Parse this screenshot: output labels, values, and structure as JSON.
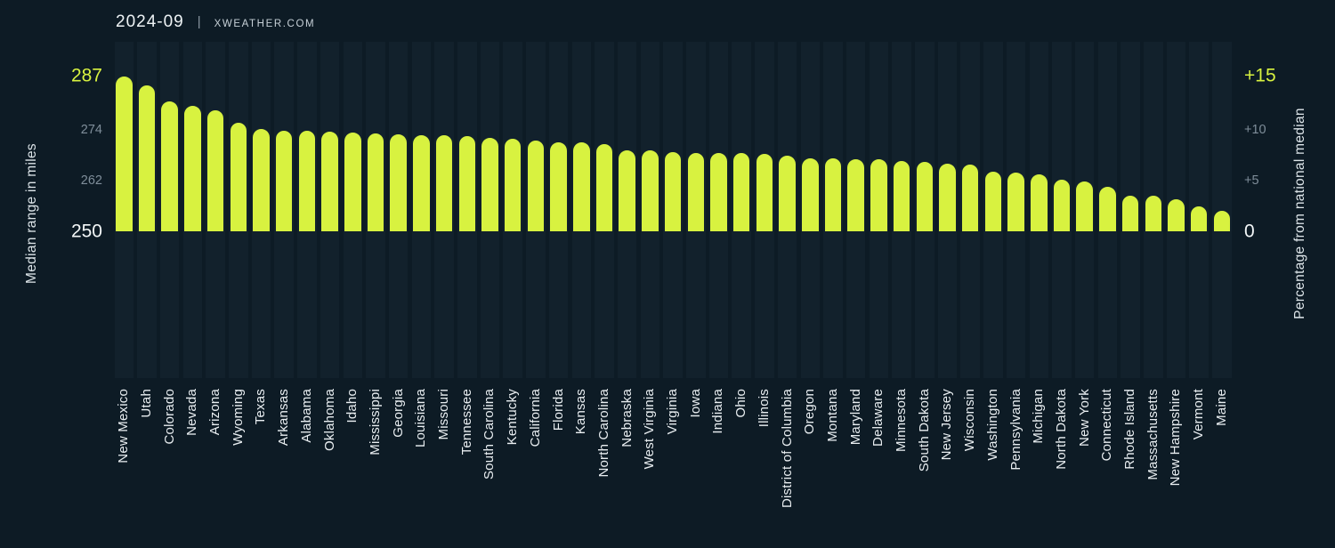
{
  "header": {
    "date": "2024-09",
    "separator": "|",
    "source": "XWEATHER.COM"
  },
  "colors": {
    "background": "#0d1b25",
    "column_band": "#12212c",
    "bar": "#d8f240",
    "accent_text": "#d8f240",
    "primary_text": "#f3f7f8",
    "muted_text": "#7f8e9a"
  },
  "chart_data": {
    "type": "bar",
    "ylabel_left": "Median range in miles",
    "ylabel_right": "Percentage from national median",
    "y_ticks_left": [
      "287",
      "274",
      "262",
      "250"
    ],
    "y_ticks_right": [
      "+15",
      "+10",
      "+5",
      "0"
    ],
    "ylim": [
      250,
      287.5
    ],
    "grid": false,
    "legend": "none",
    "categories": [
      "New Mexico",
      "Utah",
      "Colorado",
      "Nevada",
      "Arizona",
      "Wyoming",
      "Texas",
      "Arkansas",
      "Alabama",
      "Oklahoma",
      "Idaho",
      "Mississippi",
      "Georgia",
      "Louisiana",
      "Missouri",
      "Tennessee",
      "South Carolina",
      "Kentucky",
      "California",
      "Florida",
      "Kansas",
      "North Carolina",
      "Nebraska",
      "West Virginia",
      "Virginia",
      "Iowa",
      "Indiana",
      "Ohio",
      "Illinois",
      "District of Columbia",
      "Oregon",
      "Montana",
      "Maryland",
      "Delaware",
      "Minnesota",
      "South Dakota",
      "New Jersey",
      "Wisconsin",
      "Washington",
      "Pennsylvania",
      "Michigan",
      "North Dakota",
      "New York",
      "Connecticut",
      "Rhode Island",
      "Massachusetts",
      "New Hampshire",
      "Vermont",
      "Maine"
    ],
    "values": [
      287,
      285,
      281,
      280,
      279,
      276,
      274.5,
      274,
      274,
      273.8,
      273.6,
      273.4,
      273.2,
      273,
      273,
      272.7,
      272.4,
      272.2,
      271.8,
      271.3,
      271.2,
      270.9,
      269.4,
      269.4,
      269,
      268.8,
      268.8,
      268.7,
      268.6,
      268,
      267.5,
      267.4,
      267.3,
      267.2,
      266.8,
      266.7,
      266.1,
      266,
      264.2,
      264.1,
      263.7,
      262.3,
      262,
      260.6,
      258.6,
      258.5,
      257.6,
      256,
      255
    ]
  }
}
